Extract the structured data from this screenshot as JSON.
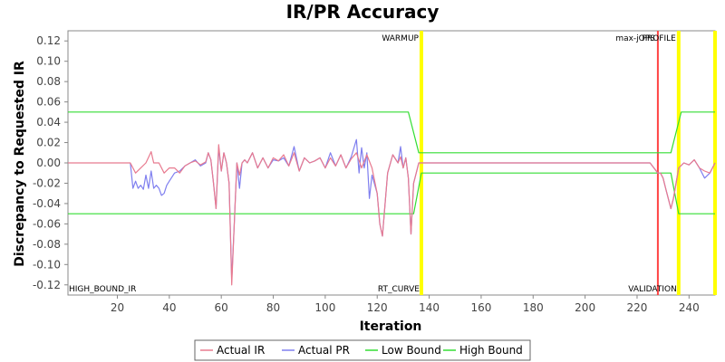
{
  "chart_data": {
    "type": "line",
    "title": "IR/PR Accuracy",
    "xlabel": "Iteration",
    "ylabel": "Discrepancy to Requested IR",
    "xlim": [
      1,
      250
    ],
    "ylim": [
      -0.13,
      0.13
    ],
    "xticks": [
      20,
      40,
      60,
      80,
      100,
      120,
      140,
      160,
      180,
      200,
      220,
      240
    ],
    "yticks": [
      -0.12,
      -0.1,
      -0.08,
      -0.06,
      -0.04,
      -0.02,
      0.0,
      0.02,
      0.04,
      0.06,
      0.08,
      0.1,
      0.12
    ],
    "ytick_labels": [
      "-0.12",
      "-0.10",
      "-0.08",
      "-0.06",
      "-0.04",
      "-0.02",
      "0.00",
      "0.02",
      "0.04",
      "0.06",
      "0.08",
      "0.10",
      "0.12"
    ],
    "grid": false,
    "legend_position": "bottom",
    "series": [
      {
        "name": "Actual IR",
        "color": "#e87a8f",
        "x": [
          1,
          10,
          20,
          25,
          27,
          29,
          31,
          33,
          34,
          36,
          38,
          40,
          42,
          44,
          46,
          48,
          50,
          52,
          54,
          55,
          56,
          57,
          58,
          59,
          60,
          61,
          62,
          63,
          64,
          65,
          66,
          67,
          68,
          69,
          70,
          72,
          74,
          76,
          78,
          80,
          82,
          84,
          86,
          88,
          90,
          92,
          94,
          96,
          98,
          100,
          102,
          104,
          106,
          108,
          110,
          112,
          114,
          116,
          118,
          120,
          121,
          122,
          124,
          126,
          128,
          129,
          130,
          131,
          132,
          133,
          134,
          136,
          137,
          140,
          150,
          160,
          170,
          180,
          190,
          200,
          210,
          220,
          225,
          228,
          229,
          230,
          231,
          232,
          233,
          234,
          235,
          236,
          238,
          240,
          242,
          244,
          246,
          248,
          250
        ],
        "y": [
          0,
          0,
          0,
          0,
          -0.01,
          -0.005,
          0,
          0.011,
          0,
          0,
          -0.01,
          -0.005,
          -0.005,
          -0.01,
          -0.003,
          0,
          0.002,
          -0.002,
          0.001,
          0.01,
          0.003,
          -0.02,
          -0.045,
          0.018,
          -0.008,
          0.01,
          0,
          -0.02,
          -0.12,
          -0.06,
          0,
          -0.012,
          0,
          0.003,
          0,
          0.01,
          -0.005,
          0.005,
          -0.005,
          0.005,
          0.002,
          0.008,
          -0.003,
          0.01,
          -0.008,
          0.005,
          0,
          0.002,
          0.005,
          -0.005,
          0.005,
          -0.003,
          0.008,
          -0.005,
          0.004,
          0.01,
          -0.005,
          0.008,
          -0.005,
          -0.03,
          -0.06,
          -0.072,
          -0.01,
          0.008,
          0,
          0.006,
          -0.005,
          0.005,
          -0.015,
          -0.07,
          -0.02,
          0,
          0,
          0,
          0,
          0,
          0,
          0,
          0,
          0,
          0,
          0,
          0,
          -0.01,
          -0.01,
          -0.015,
          -0.025,
          -0.035,
          -0.045,
          -0.035,
          -0.02,
          -0.005,
          0,
          -0.002,
          0.003,
          -0.005,
          -0.008,
          -0.01,
          0
        ]
      },
      {
        "name": "Actual PR",
        "color": "#7f7fef",
        "x": [
          25,
          26,
          27,
          28,
          29,
          30,
          31,
          32,
          33,
          34,
          35,
          36,
          37,
          38,
          39,
          40,
          42,
          44,
          46,
          48,
          50,
          52,
          54,
          55,
          56,
          57,
          58,
          59,
          60,
          61,
          62,
          63,
          64,
          65,
          66,
          67,
          68,
          69,
          70,
          72,
          74,
          76,
          78,
          80,
          82,
          84,
          86,
          88,
          90,
          92,
          94,
          96,
          98,
          100,
          102,
          104,
          106,
          108,
          110,
          112,
          113,
          114,
          115,
          116,
          117,
          118,
          120,
          121,
          122,
          124,
          126,
          128,
          129,
          130,
          131,
          132,
          133,
          134,
          136,
          137,
          140,
          150,
          160,
          170,
          180,
          190,
          200,
          210,
          220,
          225,
          228,
          229,
          230,
          231,
          232,
          233,
          234,
          235,
          236,
          238,
          240,
          242,
          244,
          246,
          248,
          250
        ],
        "y": [
          0,
          -0.025,
          -0.018,
          -0.025,
          -0.022,
          -0.026,
          -0.012,
          -0.025,
          -0.008,
          -0.025,
          -0.022,
          -0.025,
          -0.032,
          -0.03,
          -0.022,
          -0.018,
          -0.01,
          -0.008,
          -0.003,
          0,
          0.003,
          -0.003,
          0,
          0.01,
          0.003,
          -0.02,
          -0.045,
          0.015,
          -0.008,
          0.01,
          0,
          -0.02,
          -0.115,
          -0.06,
          0,
          -0.025,
          0,
          0.003,
          0,
          0.01,
          -0.005,
          0.005,
          -0.005,
          0.003,
          0.002,
          0.005,
          -0.003,
          0.016,
          -0.008,
          0.005,
          0,
          0.002,
          0.005,
          -0.005,
          0.01,
          -0.003,
          0.008,
          -0.005,
          0.006,
          0.023,
          -0.01,
          0.015,
          -0.005,
          0.01,
          -0.035,
          -0.012,
          -0.03,
          -0.06,
          -0.072,
          -0.01,
          0.008,
          0,
          0.016,
          -0.005,
          0.005,
          -0.015,
          -0.07,
          -0.02,
          0,
          0,
          0,
          0,
          0,
          0,
          0,
          0,
          0,
          0,
          0,
          0,
          -0.01,
          -0.01,
          -0.015,
          -0.025,
          -0.035,
          -0.045,
          -0.035,
          -0.02,
          -0.005,
          0,
          -0.002,
          0.003,
          -0.005,
          -0.015,
          -0.01,
          0
        ]
      },
      {
        "name": "Low Bound",
        "color": "#33dd33",
        "x": [
          1,
          134,
          137,
          233,
          236,
          250
        ],
        "y": [
          -0.05,
          -0.05,
          -0.01,
          -0.01,
          -0.05,
          -0.05
        ]
      },
      {
        "name": "High Bound",
        "color": "#33dd33",
        "x": [
          1,
          132,
          136,
          233,
          237,
          250
        ],
        "y": [
          0.05,
          0.05,
          0.01,
          0.01,
          0.05,
          0.05
        ]
      }
    ],
    "markers": [
      {
        "x": 137,
        "label": "WARMUP",
        "color": "#ffff00"
      },
      {
        "x": 228,
        "label": "max-jOPS",
        "color": "#ff4444"
      },
      {
        "x": 236,
        "label": "PROFILE",
        "color": "#ffff00"
      },
      {
        "x": 250,
        "label": "",
        "color": "#ffff00"
      }
    ],
    "bottom_labels": [
      {
        "x": 1,
        "label": "HIGH_BOUND_IR"
      },
      {
        "x": 137,
        "label": "RT_CURVE"
      },
      {
        "x": 236,
        "label": "VALIDATION"
      }
    ]
  }
}
